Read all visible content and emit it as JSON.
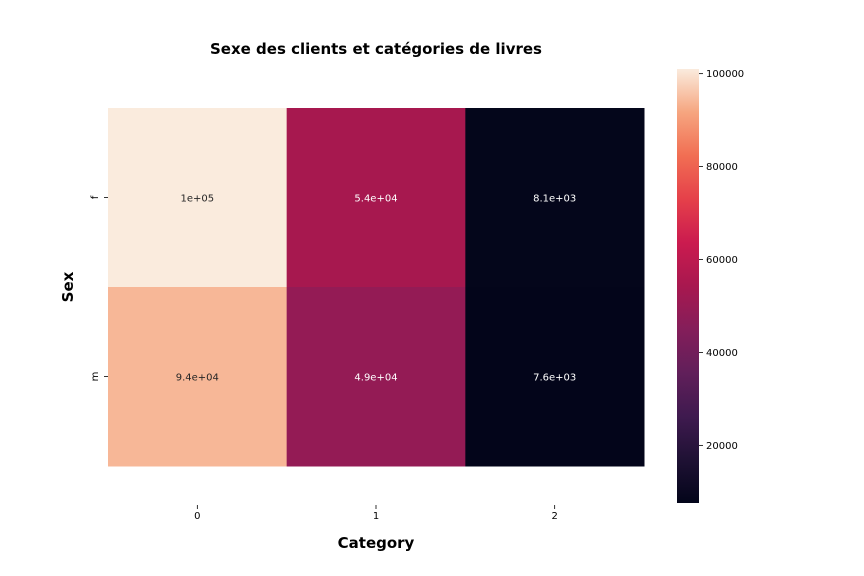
{
  "chart_data": {
    "type": "heatmap",
    "title": "Sexe des clients et catégories de livres",
    "xlabel": "Category",
    "ylabel": "Sex",
    "x_categories": [
      "0",
      "1",
      "2"
    ],
    "y_categories": [
      "f",
      "m"
    ],
    "values": [
      [
        101000,
        54000,
        8100
      ],
      [
        94000,
        49000,
        7600
      ]
    ],
    "cell_labels": [
      [
        "1e+05",
        "5.4e+04",
        "8.1e+03"
      ],
      [
        "9.4e+04",
        "4.9e+04",
        "7.6e+03"
      ]
    ],
    "colorbar": {
      "range": [
        7600,
        101000
      ],
      "ticks": [
        20000,
        40000,
        60000,
        80000,
        100000
      ],
      "tick_labels": [
        "20000",
        "40000",
        "60000",
        "80000",
        "100000"
      ],
      "colormap": "rocket"
    },
    "grid": false
  }
}
